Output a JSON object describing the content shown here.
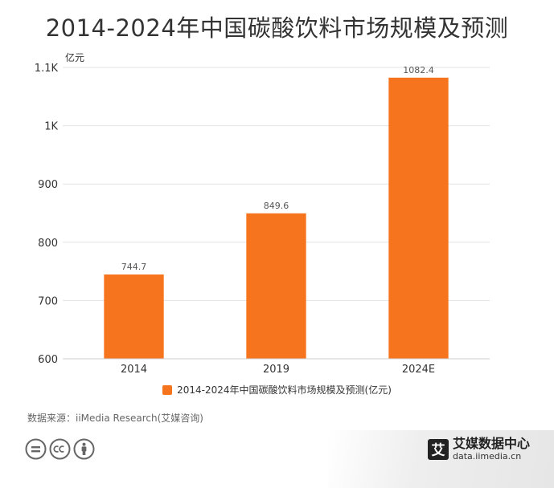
{
  "title": "2014-2024年中国碳酸饮料市场规模及预测",
  "chart_data": {
    "type": "bar",
    "categories": [
      "2014",
      "2019",
      "2024E"
    ],
    "series": [
      {
        "name": "2014-2024年中国碳酸饮料市场规模及预测(亿元)",
        "values": [
          744.7,
          849.6,
          1082.4
        ]
      }
    ],
    "data_labels": [
      "744.7",
      "849.6",
      "1082.4"
    ],
    "ylabel": "亿元",
    "ylim": [
      600,
      1100
    ],
    "yticks": [
      600,
      700,
      800,
      900,
      1000,
      1100
    ],
    "ytick_labels": [
      "600",
      "700",
      "800",
      "900",
      "1K",
      "1.1K"
    ],
    "grid": true,
    "legend_position": "bottom",
    "bar_color": "#f7741f"
  },
  "source_text": "数据来源：iiMedia Research(艾媒咨询)",
  "license_icons": [
    "cc-equals-icon",
    "cc-icon",
    "cc-by-icon"
  ],
  "brand": {
    "logo_char": "艾",
    "name": "艾媒数据中心",
    "url": "data.iimedia.cn"
  }
}
